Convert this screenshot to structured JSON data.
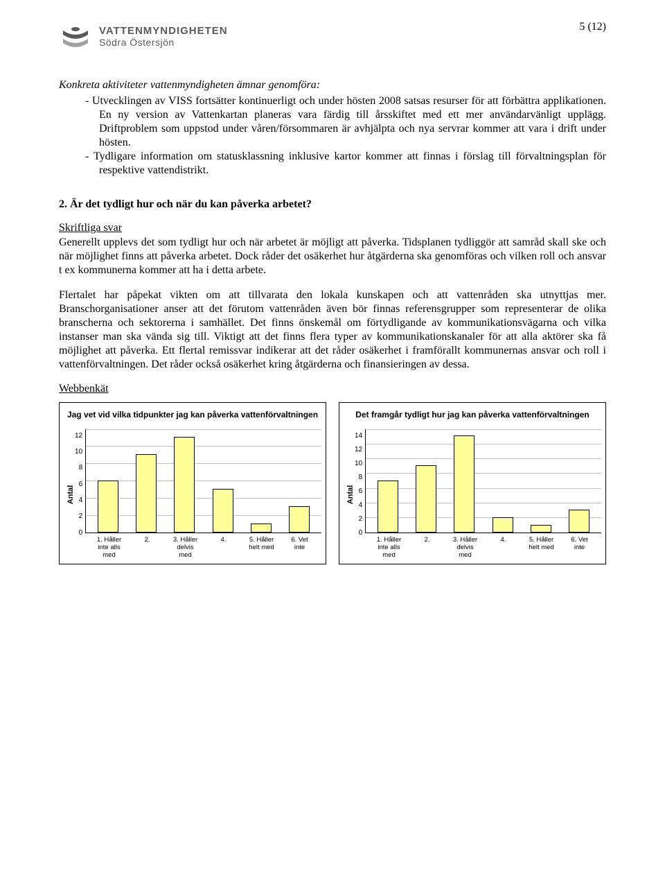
{
  "page_number": "5 (12)",
  "logo": {
    "line1": "VATTENMYNDIGHETEN",
    "line2": "Södra Östersjön"
  },
  "konkreta_title": "Konkreta aktiviteter vattenmyndigheten ämnar genomföra:",
  "konkreta_items": [
    "Utvecklingen av VISS fortsätter kontinuerligt och under hösten 2008 satsas resurser för att förbättra applikationen. En ny version av Vattenkartan planeras vara färdig till årsskiftet med ett mer användarvänligt upplägg. Driftproblem som uppstod under våren/försommaren är avhjälpta och nya servrar kommer att vara i drift under hösten.",
    "Tydligare information om statusklassning inklusive kartor kommer att finnas i förslag till förvaltningsplan för respektive vattendistrikt."
  ],
  "q2_title": "2. Är det tydligt hur och när du kan påverka arbetet?",
  "skriftliga_title": "Skriftliga svar",
  "skriftliga_p1": "Generellt upplevs det som tydligt hur och när arbetet är möjligt att påverka. Tidsplanen tydliggör att samråd skall ske och när möjlighet finns att påverka arbetet. Dock råder det osäkerhet hur åtgärderna ska genomföras och vilken roll och ansvar t ex kommunerna kommer att ha i detta arbete.",
  "skriftliga_p2": "Flertalet har påpekat vikten om att tillvarata den lokala kunskapen och att vattenråden ska utnyttjas mer. Branschorganisationer anser att det förutom vattenråden även bör finnas referensgrupper som representerar de olika branscherna och sektorerna i samhället. Det finns önskemål om förtydligande av kommunikationsvägarna och vilka instanser man ska vända sig till. Viktigt att det finns flera typer av kommunikationskanaler för att alla aktörer ska få möjlighet att påverka. Ett flertal remissvar indikerar att det råder osäkerhet i framförallt kommunernas ansvar och roll i vattenförvaltningen. Det råder också osäkerhet kring åtgärderna och finansieringen av dessa.",
  "webb_title": "Webbenkät",
  "chart1": {
    "type": "bar",
    "title": "Jag vet vid vilka tidpunkter jag kan påverka vattenförvaltningen",
    "ylabel": "Antal",
    "ylim": [
      0,
      12
    ],
    "ystep": 2,
    "categories": [
      "1. Håller inte alls med",
      "2.",
      "3. Håller delvis med",
      "4.",
      "5. Håller helt med",
      "6. Vet inte"
    ],
    "values": [
      6,
      9,
      11,
      5,
      1,
      3
    ],
    "bar_fill": "#ffff99",
    "bar_border": "#000000",
    "bg": "#ffffff",
    "grid": "#c0c0c0",
    "title_fontsize": 12,
    "label_fontsize": 11,
    "tick_fontsize": 10
  },
  "chart2": {
    "type": "bar",
    "title": "Det framgår tydligt hur jag kan påverka vattenförvaltningen",
    "ylabel": "Antal",
    "ylim": [
      0,
      14
    ],
    "ystep": 2,
    "categories": [
      "1. Håller inte alls med",
      "2.",
      "3. Håller delvis med",
      "4.",
      "5. Håller helt med",
      "6. Vet inte"
    ],
    "values": [
      7,
      9,
      13,
      2,
      1,
      3
    ],
    "bar_fill": "#ffff99",
    "bar_border": "#000000",
    "bg": "#ffffff",
    "grid": "#c0c0c0",
    "title_fontsize": 12,
    "label_fontsize": 11,
    "tick_fontsize": 10
  }
}
